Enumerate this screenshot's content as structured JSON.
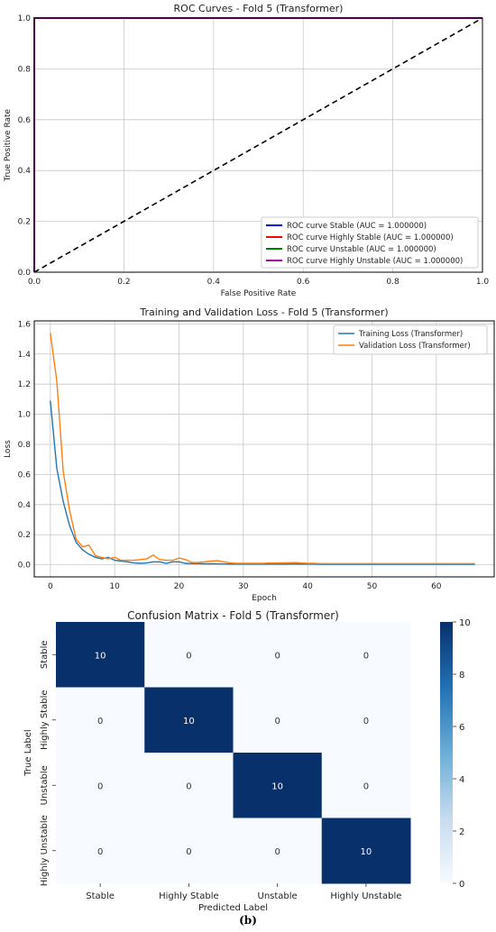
{
  "caption": "(b)",
  "chart_data": [
    {
      "type": "line",
      "title": "ROC Curves - Fold 5 (Transformer)",
      "xlabel": "False Positive Rate",
      "ylabel": "True Positive Rate",
      "xlim": [
        0,
        1
      ],
      "ylim": [
        0,
        1
      ],
      "xticks": [
        "0.0",
        "0.2",
        "0.4",
        "0.6",
        "0.8",
        "1.0"
      ],
      "yticks": [
        "0.0",
        "0.2",
        "0.4",
        "0.6",
        "0.8",
        "1.0"
      ],
      "grid": true,
      "legend_position": "lower-right",
      "series": [
        {
          "name": "ROC curve Stable (AUC = 1.000000)",
          "color": "#0000ff",
          "x": [
            0,
            0,
            1
          ],
          "y": [
            0,
            1,
            1
          ]
        },
        {
          "name": "ROC curve Highly Stable (AUC = 1.000000)",
          "color": "#ff0000",
          "x": [
            0,
            0,
            1
          ],
          "y": [
            0,
            1,
            1
          ]
        },
        {
          "name": "ROC curve Unstable (AUC = 1.000000)",
          "color": "#008000",
          "x": [
            0,
            0,
            1
          ],
          "y": [
            0,
            1,
            1
          ]
        },
        {
          "name": "ROC curve Highly Unstable (AUC = 1.000000)",
          "color": "#9b009b",
          "x": [
            0,
            0,
            1
          ],
          "y": [
            0,
            1,
            1
          ]
        }
      ],
      "diagonal": {
        "x": [
          0,
          1
        ],
        "y": [
          0,
          1
        ],
        "color": "#000000",
        "style": "dashed"
      }
    },
    {
      "type": "line",
      "title": "Training and Validation Loss - Fold 5 (Transformer)",
      "xlabel": "Epoch",
      "ylabel": "Loss",
      "xlim": [
        -2.5,
        69
      ],
      "ylim": [
        -0.08,
        1.62
      ],
      "xticks": [
        0,
        10,
        20,
        30,
        40,
        50,
        60
      ],
      "yticks": [
        "0.0",
        "0.2",
        "0.4",
        "0.6",
        "0.8",
        "1.0",
        "1.2",
        "1.4",
        "1.6"
      ],
      "grid": true,
      "legend_position": "top-right",
      "x": [
        0,
        1,
        2,
        3,
        4,
        5,
        6,
        7,
        8,
        9,
        10,
        11,
        12,
        13,
        14,
        15,
        16,
        17,
        18,
        19,
        20,
        21,
        22,
        23,
        24,
        25,
        26,
        27,
        28,
        29,
        30,
        31,
        32,
        33,
        34,
        35,
        36,
        37,
        38,
        39,
        40,
        41,
        42,
        43,
        44,
        45,
        46,
        47,
        48,
        49,
        50,
        51,
        52,
        53,
        54,
        55,
        56,
        57,
        58,
        59,
        60,
        61,
        62,
        63,
        64,
        65,
        66
      ],
      "series": [
        {
          "name": "Training Loss (Transformer)",
          "color": "#1f77b4",
          "values": [
            1.09,
            0.64,
            0.42,
            0.26,
            0.15,
            0.1,
            0.07,
            0.05,
            0.04,
            0.05,
            0.03,
            0.025,
            0.02,
            0.012,
            0.01,
            0.012,
            0.02,
            0.02,
            0.01,
            0.02,
            0.02,
            0.01,
            0.008,
            0.008,
            0.007,
            0.007,
            0.006,
            0.006,
            0.005,
            0.005,
            0.005,
            0.005,
            0.005,
            0.005,
            0.005,
            0.005,
            0.005,
            0.005,
            0.006,
            0.005,
            0.005,
            0.005,
            0.004,
            0.004,
            0.004,
            0.004,
            0.004,
            0.004,
            0.004,
            0.004,
            0.004,
            0.004,
            0.004,
            0.004,
            0.004,
            0.004,
            0.004,
            0.004,
            0.004,
            0.004,
            0.004,
            0.004,
            0.004,
            0.004,
            0.004,
            0.004,
            0.004
          ]
        },
        {
          "name": "Validation Loss (Transformer)",
          "color": "#ff7f0e",
          "values": [
            1.54,
            1.22,
            0.62,
            0.36,
            0.17,
            0.12,
            0.13,
            0.06,
            0.05,
            0.04,
            0.05,
            0.03,
            0.03,
            0.03,
            0.035,
            0.04,
            0.065,
            0.035,
            0.03,
            0.03,
            0.045,
            0.035,
            0.015,
            0.015,
            0.02,
            0.025,
            0.028,
            0.02,
            0.012,
            0.01,
            0.01,
            0.01,
            0.01,
            0.01,
            0.012,
            0.012,
            0.013,
            0.014,
            0.015,
            0.012,
            0.01,
            0.01,
            0.008,
            0.008,
            0.008,
            0.008,
            0.008,
            0.008,
            0.008,
            0.008,
            0.008,
            0.008,
            0.008,
            0.008,
            0.008,
            0.008,
            0.008,
            0.008,
            0.008,
            0.008,
            0.008,
            0.008,
            0.008,
            0.008,
            0.008,
            0.008,
            0.008
          ]
        }
      ]
    },
    {
      "type": "heatmap",
      "title": "Confusion Matrix - Fold 5 (Transformer)",
      "xlabel": "Predicted Label",
      "ylabel": "True Label",
      "x_categories": [
        "Stable",
        "Highly Stable",
        "Unstable",
        "Highly Unstable"
      ],
      "y_categories": [
        "Stable",
        "Highly Stable",
        "Unstable",
        "Highly Unstable"
      ],
      "values": [
        [
          10,
          0,
          0,
          0
        ],
        [
          0,
          10,
          0,
          0
        ],
        [
          0,
          0,
          10,
          0
        ],
        [
          0,
          0,
          0,
          10
        ]
      ],
      "colorbar_range": [
        0,
        10
      ],
      "colorbar_ticks": [
        0,
        2,
        4,
        6,
        8,
        10
      ],
      "colormap": "Blues"
    }
  ]
}
